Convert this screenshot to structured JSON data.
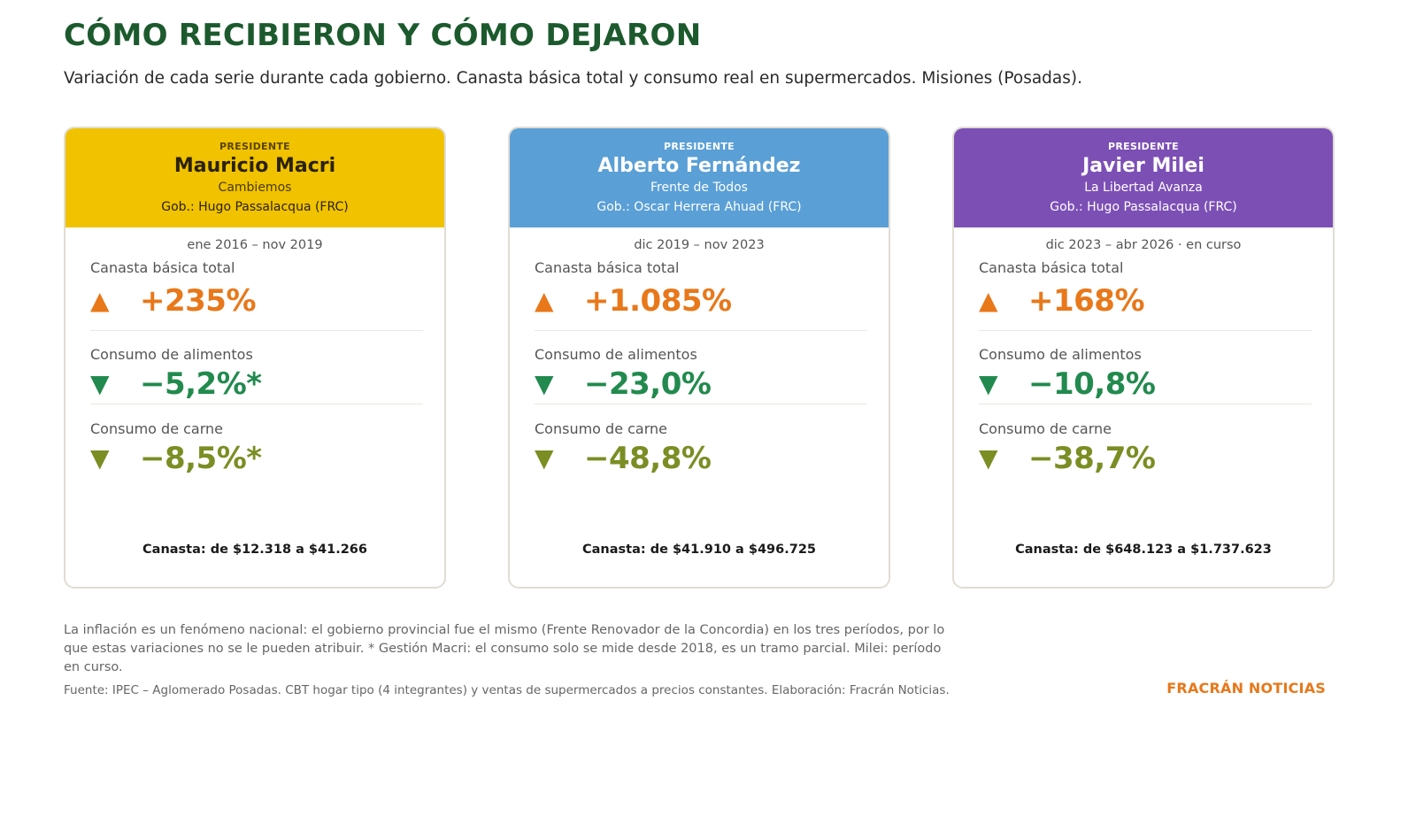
{
  "header": {
    "title": "CÓMO RECIBIERON Y CÓMO DEJARON",
    "subtitle": "Variación de cada serie durante cada gobierno. Canasta básica total y consumo real en supermercados. Misiones (Posadas)."
  },
  "colors": {
    "title": "#1c5a2e",
    "increase": "#e8781a",
    "food_decrease": "#228a4e",
    "meat_decrease": "#7a8e24",
    "macri": "#f0c200",
    "fernandez": "#5a9fd6",
    "milei": "#7c4fb5"
  },
  "cards": [
    {
      "label": "PRESIDENTE",
      "name": "Mauricio Macri",
      "party": "Cambiemos",
      "governor": "Gob.: Hugo Passalacqua (FRC)",
      "period": "ene 2016 – nov 2019",
      "canasta_label": "Canasta básica total",
      "canasta_value": "+235%",
      "alimentos_label": "Consumo de alimentos",
      "alimentos_value": "−5,2%*",
      "carne_label": "Consumo de carne",
      "carne_value": "−8,5%*",
      "canasta_range": "Canasta: de $12.318 a $41.266"
    },
    {
      "label": "PRESIDENTE",
      "name": "Alberto Fernández",
      "party": "Frente de Todos",
      "governor": "Gob.: Oscar Herrera Ahuad (FRC)",
      "period": "dic 2019 – nov 2023",
      "canasta_label": "Canasta básica total",
      "canasta_value": "+1.085%",
      "alimentos_label": "Consumo de alimentos",
      "alimentos_value": "−23,0%",
      "carne_label": "Consumo de carne",
      "carne_value": "−48,8%",
      "canasta_range": "Canasta: de $41.910 a $496.725"
    },
    {
      "label": "PRESIDENTE",
      "name": "Javier Milei",
      "party": "La Libertad Avanza",
      "governor": "Gob.: Hugo Passalacqua (FRC)",
      "period": "dic 2023 – abr 2026 · en curso",
      "canasta_label": "Canasta básica total",
      "canasta_value": "+168%",
      "alimentos_label": "Consumo de alimentos",
      "alimentos_value": "−10,8%",
      "carne_label": "Consumo de carne",
      "carne_value": "−38,7%",
      "canasta_range": "Canasta: de $648.123 a $1.737.623"
    }
  ],
  "icons": {
    "up": "▲",
    "down": "▼"
  },
  "footer": {
    "note": "La inflación es un fenómeno nacional: el gobierno provincial fue el mismo (Frente Renovador de la Concordia) en los tres períodos, por lo que estas variaciones no se le pueden atribuir. * Gestión Macri: el consumo solo se mide desde 2018, es un tramo parcial. Milei: período en curso.",
    "source": "Fuente: IPEC – Aglomerado Posadas. CBT hogar tipo (4 integrantes) y ventas de supermercados a precios constantes. Elaboración: Fracrán Noticias.",
    "brand": "FRACRÁN NOTICIAS"
  }
}
